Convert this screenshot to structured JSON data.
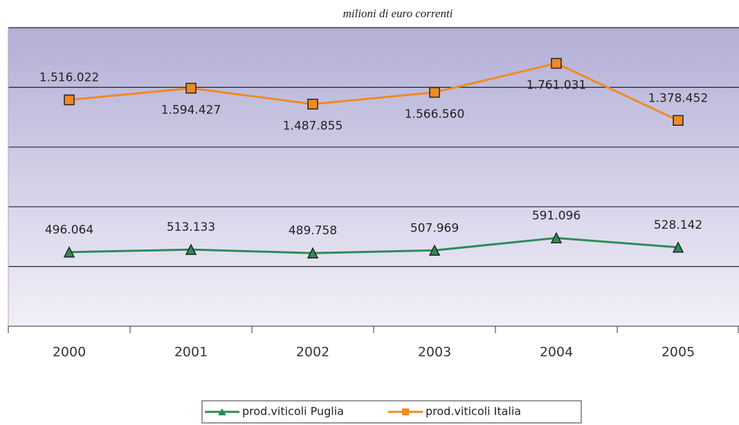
{
  "chart_data": {
    "type": "line",
    "title": "milioni di euro correnti",
    "categories": [
      "2000",
      "2001",
      "2002",
      "2003",
      "2004",
      "2005"
    ],
    "series": [
      {
        "name": "prod.viticoli Puglia",
        "color": "#2e8b57",
        "values": [
          496064,
          513133,
          489758,
          507969,
          591096,
          528142
        ],
        "value_labels": [
          "496.064",
          "513.133",
          "489.758",
          "507.969",
          "591.096",
          "528.142"
        ]
      },
      {
        "name": "prod.viticoli Italia",
        "color": "#f08a24",
        "values": [
          1516022,
          1594427,
          1487855,
          1566560,
          1761031,
          1378452
        ],
        "value_labels": [
          "1.516.022",
          "1.594.427",
          "1.487.855",
          "1.566.560",
          "1.761.031",
          "1.378.452"
        ]
      }
    ],
    "ylim": [
      0,
      2000000
    ],
    "yticks": [
      0,
      400000,
      800000,
      1200000,
      1600000,
      2000000
    ],
    "grid": true,
    "legend": "bottom"
  }
}
